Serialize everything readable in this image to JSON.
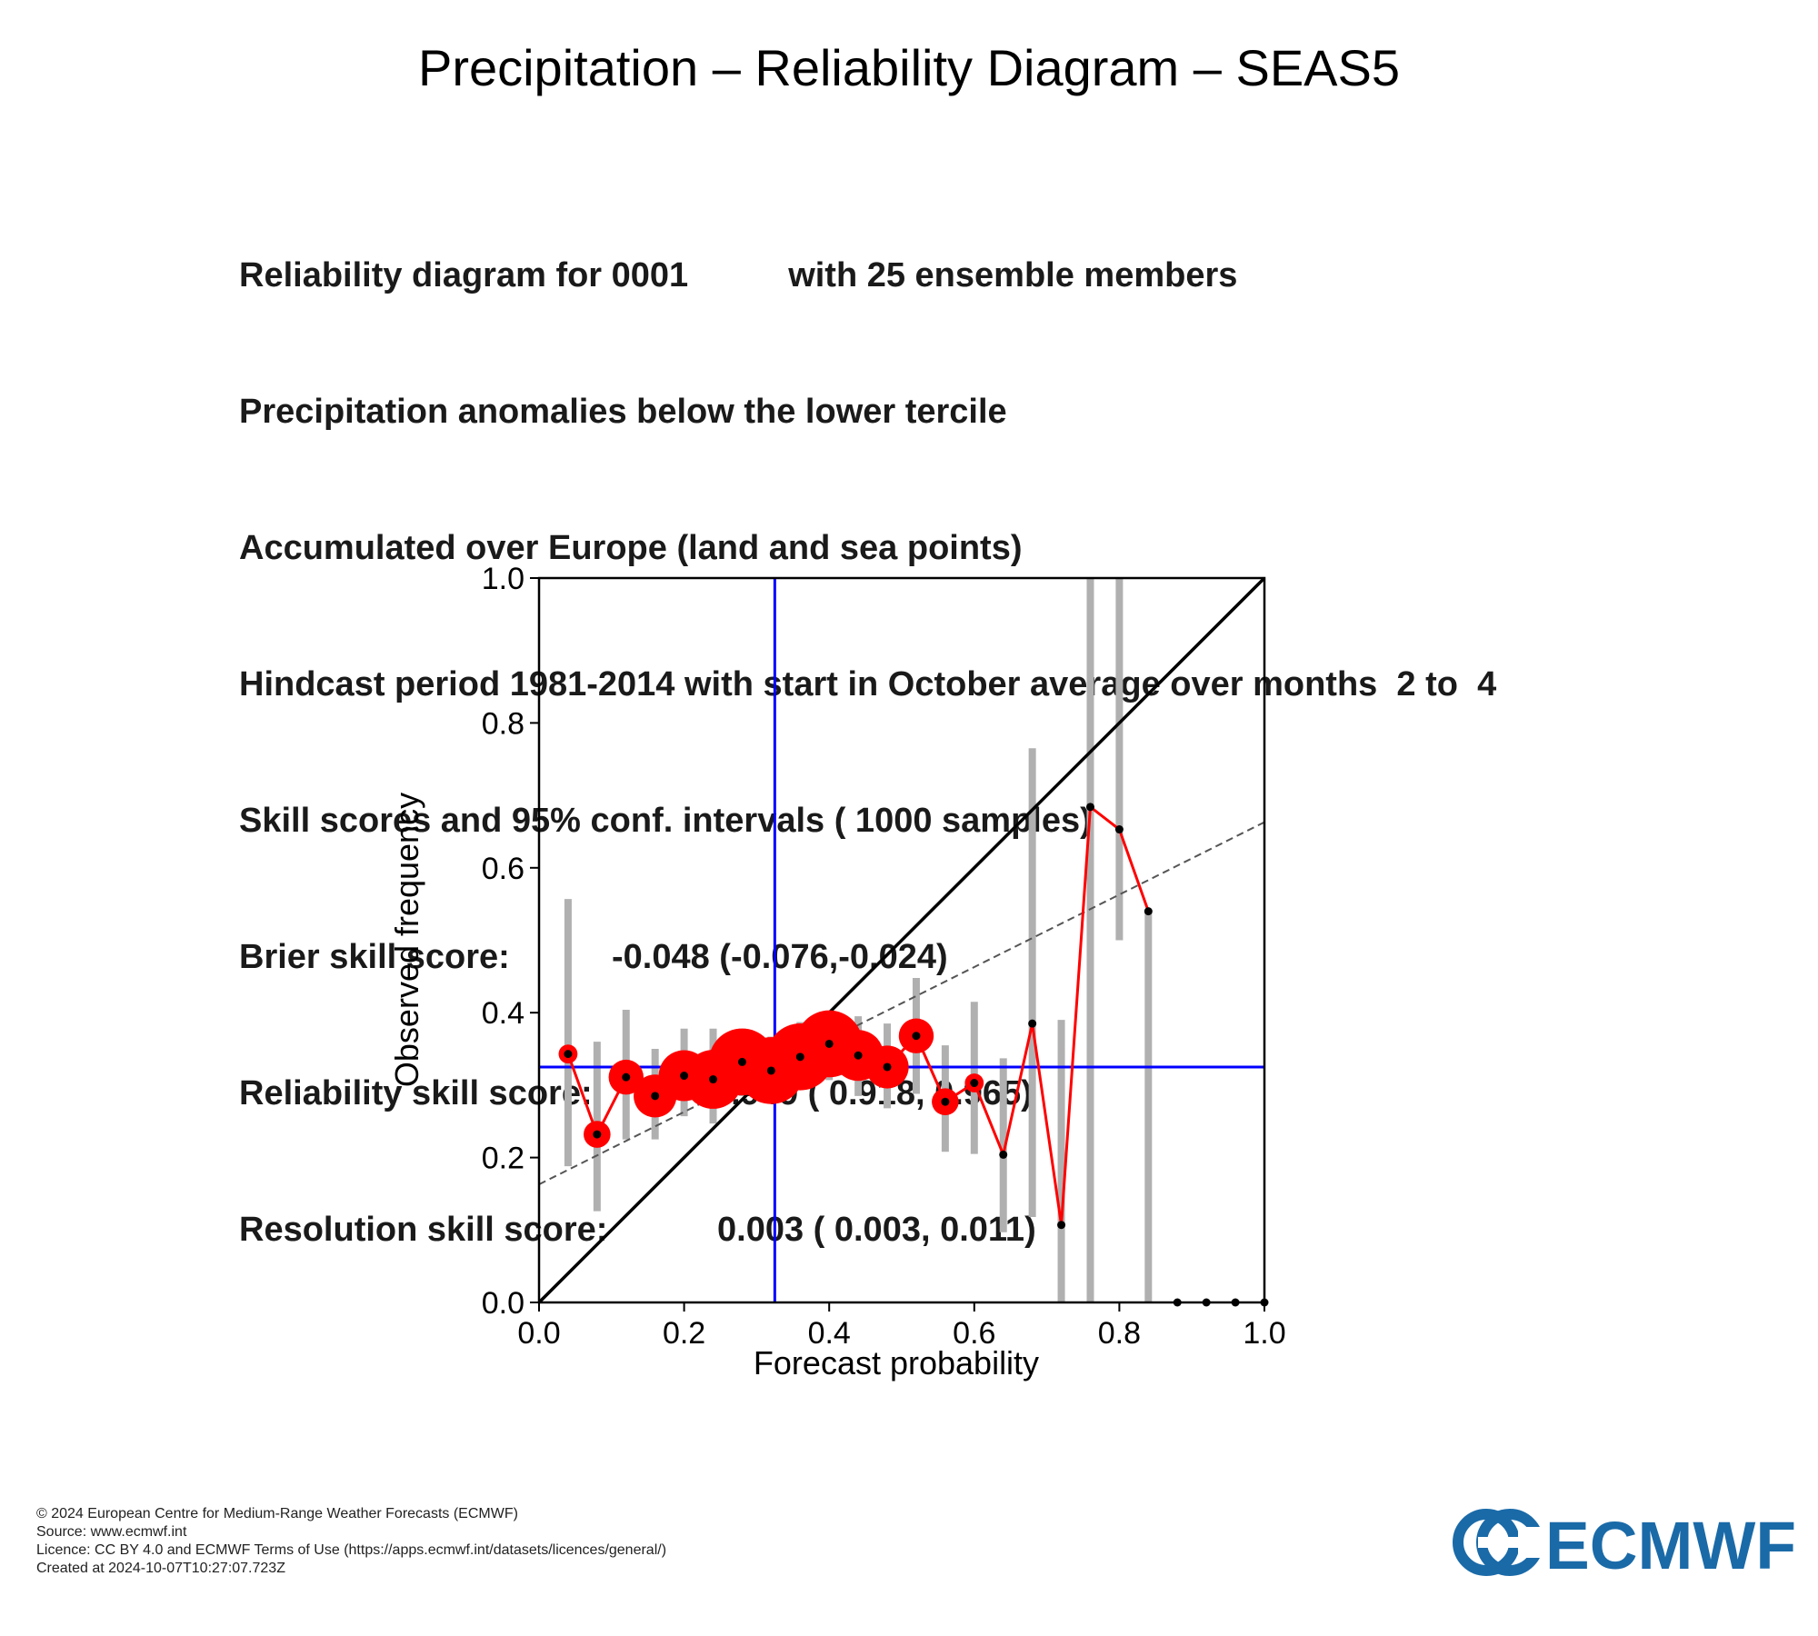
{
  "page_title": "Precipitation – Reliability Diagram – SEAS5",
  "info": {
    "line1_a": "Reliability diagram for 0001",
    "line1_b": "with 25 ensemble members",
    "line2": "Precipitation anomalies below the lower tercile",
    "line3": "Accumulated over Europe (land and sea points)",
    "line4": "Hindcast period 1981-2014 with start in October average over months  2 to  4",
    "line5": "Skill scores and 95% conf. intervals ( 1000 samples)",
    "brier_label": "Brier skill score:",
    "brier_value": "-0.048 (-0.076,-0.024)",
    "reliability_label": "Reliability skill score:",
    "reliability_value": "0.949 ( 0.918, 0.965)",
    "resolution_label": "Resolution skill score:",
    "resolution_value": "0.003 ( 0.003, 0.011)"
  },
  "chart_data": {
    "type": "scatter",
    "xlabel": "Forecast probability",
    "ylabel": "Observed frequency",
    "xlim": [
      0,
      1
    ],
    "ylim": [
      0,
      1
    ],
    "xticks": [
      "0.0",
      "0.2",
      "0.4",
      "0.6",
      "0.8",
      "1.0"
    ],
    "yticks": [
      "0.0",
      "0.2",
      "0.4",
      "0.6",
      "0.8",
      "1.0"
    ],
    "climatology": 0.325,
    "regression_line": {
      "intercept": 0.163,
      "slope": 0.5
    },
    "colors": {
      "series": "#ff0000",
      "error_bar": "#b0b0b0",
      "climatology": "#0000ff",
      "diagonal": "#000000",
      "regression": "#555555"
    },
    "points": [
      {
        "x": 0.04,
        "y": 0.343,
        "lo": 0.188,
        "hi": 0.557,
        "size": 1
      },
      {
        "x": 0.08,
        "y": 0.232,
        "lo": 0.126,
        "hi": 0.36,
        "size": 2
      },
      {
        "x": 0.12,
        "y": 0.311,
        "lo": 0.225,
        "hi": 0.404,
        "size": 3
      },
      {
        "x": 0.16,
        "y": 0.285,
        "lo": 0.225,
        "hi": 0.35,
        "size": 4
      },
      {
        "x": 0.2,
        "y": 0.313,
        "lo": 0.257,
        "hi": 0.378,
        "size": 5
      },
      {
        "x": 0.24,
        "y": 0.308,
        "lo": 0.247,
        "hi": 0.378,
        "size": 6
      },
      {
        "x": 0.28,
        "y": 0.332,
        "lo": 0.285,
        "hi": 0.378,
        "size": 7
      },
      {
        "x": 0.32,
        "y": 0.32,
        "lo": 0.275,
        "hi": 0.367,
        "size": 7
      },
      {
        "x": 0.36,
        "y": 0.339,
        "lo": 0.294,
        "hi": 0.387,
        "size": 7
      },
      {
        "x": 0.4,
        "y": 0.357,
        "lo": 0.307,
        "hi": 0.4,
        "size": 7
      },
      {
        "x": 0.44,
        "y": 0.341,
        "lo": 0.285,
        "hi": 0.395,
        "size": 5
      },
      {
        "x": 0.48,
        "y": 0.325,
        "lo": 0.268,
        "hi": 0.385,
        "size": 4
      },
      {
        "x": 0.52,
        "y": 0.368,
        "lo": 0.288,
        "hi": 0.448,
        "size": 3
      },
      {
        "x": 0.56,
        "y": 0.277,
        "lo": 0.208,
        "hi": 0.355,
        "size": 2
      },
      {
        "x": 0.6,
        "y": 0.303,
        "lo": 0.205,
        "hi": 0.415,
        "size": 1
      },
      {
        "x": 0.64,
        "y": 0.204,
        "lo": 0.097,
        "hi": 0.337,
        "size": 0
      },
      {
        "x": 0.68,
        "y": 0.385,
        "lo": 0.118,
        "hi": 0.765,
        "size": 0
      },
      {
        "x": 0.72,
        "y": 0.107,
        "lo": 0.0,
        "hi": 0.39,
        "size": 0
      },
      {
        "x": 0.76,
        "y": 0.684,
        "lo": 0.0,
        "hi": 1.0,
        "size": 0
      },
      {
        "x": 0.8,
        "y": 0.653,
        "lo": 0.5,
        "hi": 1.0,
        "size": 0
      },
      {
        "x": 0.84,
        "y": 0.54,
        "lo": 0.0,
        "hi": 0.54,
        "size": 0
      },
      {
        "x": 0.88,
        "y": 0.0,
        "lo": 0.0,
        "hi": 0.0,
        "size": 0
      },
      {
        "x": 0.92,
        "y": 0.0,
        "lo": 0.0,
        "hi": 0.0,
        "size": 0
      },
      {
        "x": 0.96,
        "y": 0.0,
        "lo": 0.0,
        "hi": 0.0,
        "size": 0
      },
      {
        "x": 1.0,
        "y": 0.0,
        "lo": 0.0,
        "hi": 0.0,
        "size": 0
      }
    ]
  },
  "footer": {
    "line1": "© 2024 European Centre for Medium-Range Weather Forecasts (ECMWF)",
    "line2": "Source: www.ecmwf.int",
    "line3": "Licence: CC BY 4.0 and ECMWF Terms of Use (https://apps.ecmwf.int/datasets/licences/general/)",
    "line4": "Created at 2024-10-07T10:27:07.723Z"
  },
  "logo": {
    "text": "ECMWF",
    "color": "#1a6aa8"
  }
}
